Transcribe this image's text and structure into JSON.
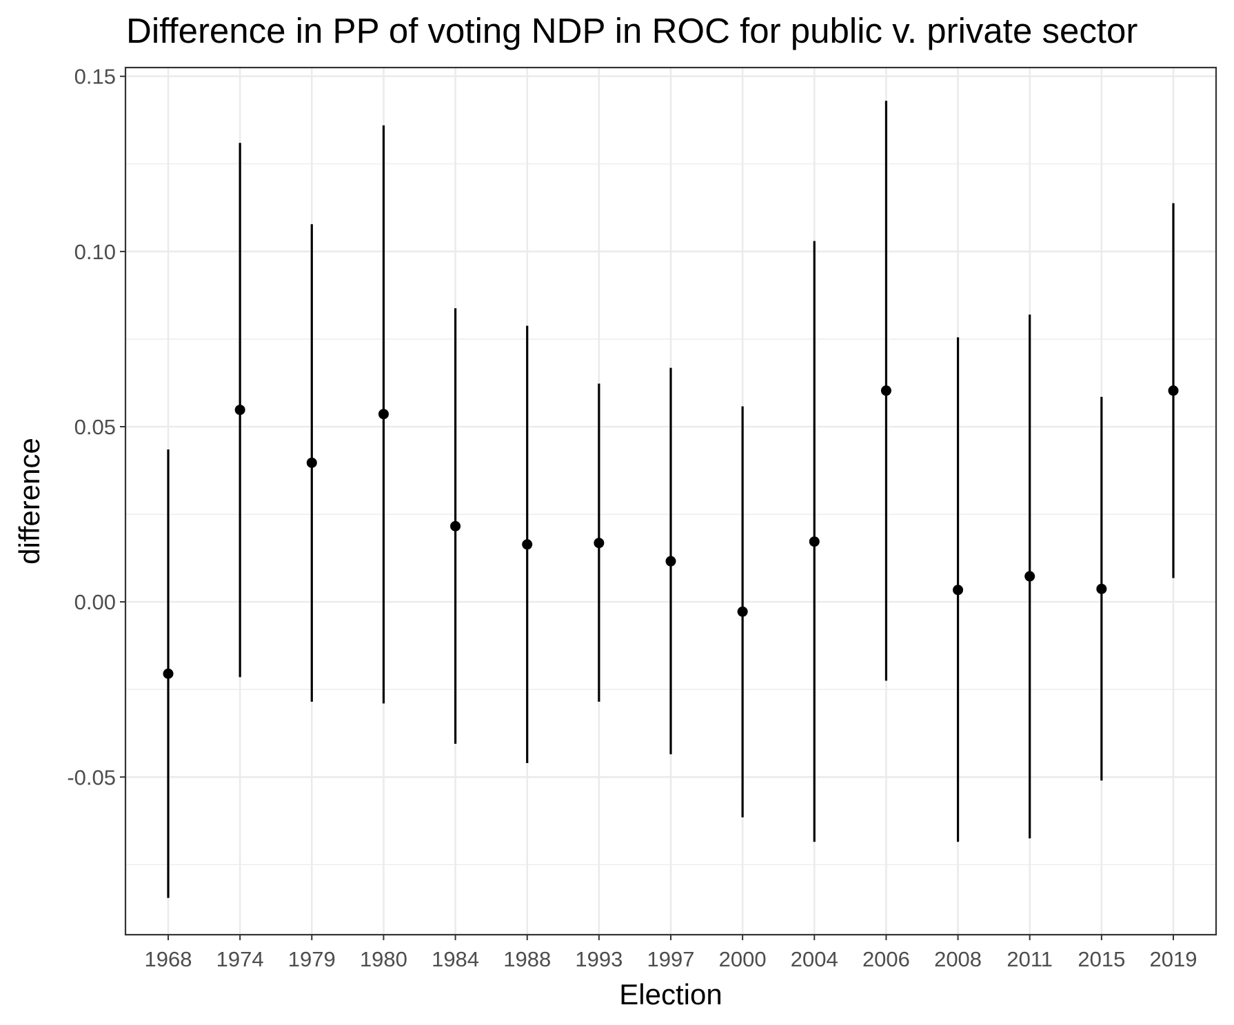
{
  "chart_data": {
    "type": "scatter",
    "title": "Difference in PP of voting NDP in ROC for public v. private sector",
    "xlabel": "Election",
    "ylabel": "difference",
    "categories": [
      "1968",
      "1974",
      "1979",
      "1980",
      "1984",
      "1988",
      "1993",
      "1997",
      "2000",
      "2004",
      "2006",
      "2008",
      "2011",
      "2015",
      "2019"
    ],
    "estimates": [
      -0.0205,
      0.0548,
      0.0397,
      0.0536,
      0.0216,
      0.0164,
      0.0168,
      0.0116,
      -0.0028,
      0.0172,
      0.0603,
      0.0034,
      0.0073,
      0.0037,
      0.0603
    ],
    "lower": [
      -0.0845,
      -0.0215,
      -0.0285,
      -0.029,
      -0.0405,
      -0.046,
      -0.0285,
      -0.0435,
      -0.0615,
      -0.0685,
      -0.0225,
      -0.0685,
      -0.0675,
      -0.051,
      0.0068
    ],
    "upper": [
      0.0435,
      0.131,
      0.1078,
      0.136,
      0.0838,
      0.0788,
      0.0623,
      0.0668,
      0.0558,
      0.103,
      0.143,
      0.0755,
      0.082,
      0.0585,
      0.1138
    ],
    "ylim": [
      -0.095,
      0.1525
    ],
    "yticks": [
      -0.05,
      0.0,
      0.05,
      0.1,
      0.15
    ],
    "ytick_labels": [
      "-0.05",
      "0.00",
      "0.05",
      "0.10",
      "0.15"
    ],
    "grid": true,
    "legend": "none"
  }
}
